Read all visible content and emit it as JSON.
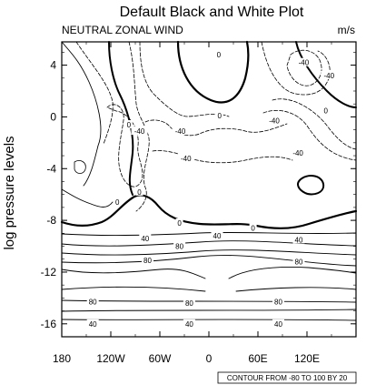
{
  "chart_data": {
    "type": "contour",
    "title": "Default Black and White Plot",
    "left_string": "NEUTRAL ZONAL WIND",
    "right_string": "m/s",
    "ylabel": "log pressure levels",
    "xlabel": "",
    "x_ticks": [
      {
        "value": -180,
        "label": "180"
      },
      {
        "value": -120,
        "label": "120W"
      },
      {
        "value": -60,
        "label": "60W"
      },
      {
        "value": 0,
        "label": "0"
      },
      {
        "value": 60,
        "label": "60E"
      },
      {
        "value": 120,
        "label": "120E"
      }
    ],
    "y_ticks": [
      {
        "value": 4,
        "label": "4"
      },
      {
        "value": 0,
        "label": "0"
      },
      {
        "value": -4,
        "label": "-4"
      },
      {
        "value": -8,
        "label": "-8"
      },
      {
        "value": -12,
        "label": "-12"
      },
      {
        "value": -16,
        "label": "-16"
      }
    ],
    "xlim": [
      -180,
      180
    ],
    "ylim": [
      -17,
      5.8
    ],
    "contour_info": "CONTOUR FROM -80 TO 100 BY 20",
    "contour_labels": [
      {
        "text": "0",
        "x": 12,
        "y": 4.8
      },
      {
        "text": "-40",
        "x": 116,
        "y": 4.2
      },
      {
        "text": "-40",
        "x": 147,
        "y": 3.2
      },
      {
        "text": "0",
        "x": 13,
        "y": 0.1
      },
      {
        "text": "0",
        "x": 143,
        "y": 0.5
      },
      {
        "text": "-40",
        "x": 80,
        "y": -0.3
      },
      {
        "text": "0",
        "x": -98,
        "y": -0.6
      },
      {
        "text": "-40",
        "x": -85,
        "y": -1.1
      },
      {
        "text": "-40",
        "x": -35,
        "y": -1.1
      },
      {
        "text": "-40",
        "x": -28,
        "y": -3.2
      },
      {
        "text": "-40",
        "x": 109,
        "y": -2.8
      },
      {
        "text": "0",
        "x": -85,
        "y": -5.8
      },
      {
        "text": "0",
        "x": -112,
        "y": -6.6
      },
      {
        "text": "0",
        "x": -36,
        "y": -8.2
      },
      {
        "text": "0",
        "x": 54,
        "y": -8.6
      },
      {
        "text": "40",
        "x": -78,
        "y": -9.4
      },
      {
        "text": "40",
        "x": 10,
        "y": -9.2
      },
      {
        "text": "40",
        "x": 110,
        "y": -9.5
      },
      {
        "text": "80",
        "x": -36,
        "y": -10.0
      },
      {
        "text": "80",
        "x": -75,
        "y": -11.1
      },
      {
        "text": "80",
        "x": 110,
        "y": -11.2
      },
      {
        "text": "80",
        "x": -142,
        "y": -14.3
      },
      {
        "text": "80",
        "x": -24,
        "y": -14.4
      },
      {
        "text": "80",
        "x": 85,
        "y": -14.3
      },
      {
        "text": "40",
        "x": -142,
        "y": -16.0
      },
      {
        "text": "40",
        "x": -24,
        "y": -16.0
      },
      {
        "text": "40",
        "x": 85,
        "y": -16.0
      }
    ]
  }
}
